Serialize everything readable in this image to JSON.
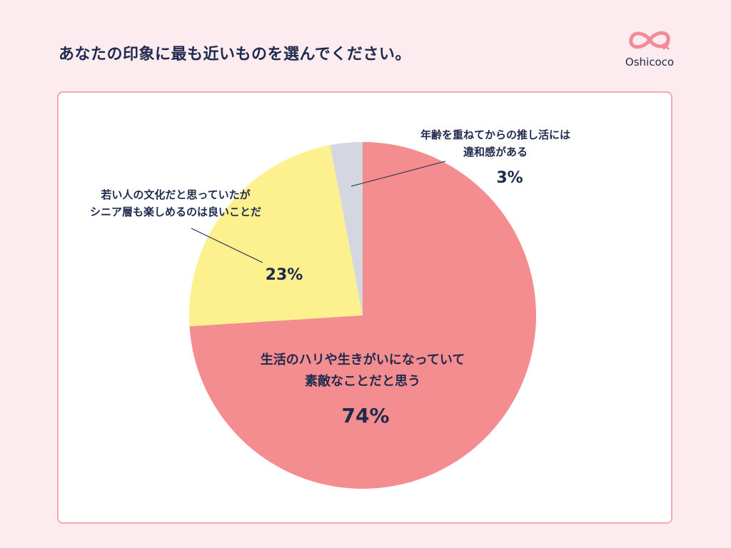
{
  "header": {
    "title": "あなたの印象に最も近いものを選んでください。",
    "logo_text": "Oshicoco"
  },
  "colors": {
    "background": "#fdecef",
    "card_border": "#f5a9b3",
    "text": "#1f2a4d",
    "logo": "#f28b97"
  },
  "chart_data": {
    "type": "pie",
    "start_angle_deg": 0,
    "direction": "clockwise",
    "slices": [
      {
        "label_lines": [
          "生活のハリや生きがいになっていて",
          "素敵なことだと思う"
        ],
        "value": 74,
        "percent_label": "74%",
        "color": "#f48d8f"
      },
      {
        "label_lines": [
          "若い人の文化だと思っていたが",
          "シニア層も楽しめるのは良いことだ"
        ],
        "value": 23,
        "percent_label": "23%",
        "color": "#fdf08e"
      },
      {
        "label_lines": [
          "年齢を重ねてからの推し活には",
          "違和感がある"
        ],
        "value": 3,
        "percent_label": "3%",
        "color": "#d4d7df"
      }
    ]
  }
}
